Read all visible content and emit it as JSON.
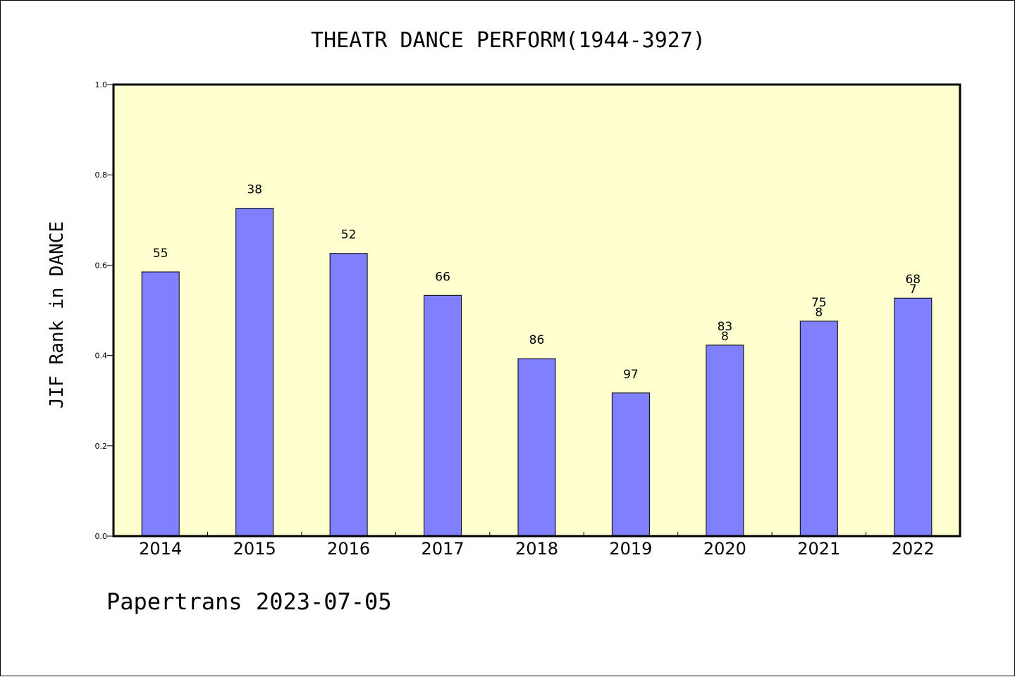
{
  "chart_data": {
    "type": "bar",
    "title": "THEATR DANCE PERFORM(1944-3927)",
    "xlabel": "",
    "ylabel": "JIF Rank in DANCE",
    "categories": [
      "2014",
      "2015",
      "2016",
      "2017",
      "2018",
      "2019",
      "2020",
      "2021",
      "2022"
    ],
    "values": [
      0.585,
      0.726,
      0.626,
      0.533,
      0.393,
      0.317,
      0.423,
      0.476,
      0.527
    ],
    "data_labels": [
      [
        "55"
      ],
      [
        "38"
      ],
      [
        "52"
      ],
      [
        "66"
      ],
      [
        "86"
      ],
      [
        "97"
      ],
      [
        "83",
        "8"
      ],
      [
        "75",
        "8"
      ],
      [
        "68",
        "7"
      ]
    ],
    "ylim": [
      0,
      1.0
    ],
    "yticks": [
      "0.0",
      "0.2",
      "0.4",
      "0.6",
      "0.8",
      "1.0"
    ],
    "grid": false,
    "legend": "none",
    "colors": {
      "bar_fill": "#8080ff",
      "plot_background": "#ffffd0",
      "axis": "#000000"
    }
  },
  "footer": {
    "text": "Papertrans 2023-07-05"
  }
}
